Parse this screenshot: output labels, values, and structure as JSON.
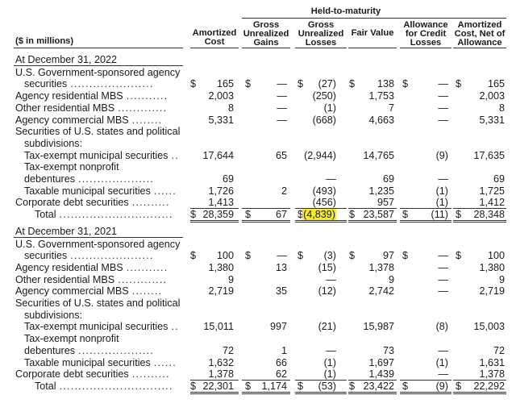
{
  "header": {
    "group_label": "Held-to-maturity",
    "units_label": "($ in millions)",
    "columns": [
      {
        "key": "amortized_cost",
        "label": "Amortized Cost"
      },
      {
        "key": "gross_unrealized_gains",
        "label": "Gross Unrealized Gains"
      },
      {
        "key": "gross_unrealized_losses",
        "label": "Gross Unrealized Losses"
      },
      {
        "key": "fair_value",
        "label": "Fair Value"
      },
      {
        "key": "allowance_for_credit_losses",
        "label": "Allowance for Credit Losses"
      },
      {
        "key": "amortized_cost_net",
        "label": "Amortized Cost, Net of Allowance"
      }
    ]
  },
  "highlight_color": "#f5e931",
  "sections": [
    {
      "title": "At December 31, 2022",
      "rows": [
        {
          "type": "label",
          "text": "U.S. Government-sponsored agency"
        },
        {
          "type": "data",
          "text": "securities",
          "indent": true,
          "dots": "......................",
          "currency": true,
          "values": [
            "165",
            "—",
            "(27)",
            "138",
            "—",
            "165"
          ]
        },
        {
          "type": "data",
          "text": "Agency residential MBS",
          "dots": "...........",
          "values": [
            "2,003",
            "—",
            "(250)",
            "1,753",
            "—",
            "2,003"
          ]
        },
        {
          "type": "data",
          "text": "Other residential MBS",
          "dots": ".............",
          "values": [
            "8",
            "—",
            "(1)",
            "7",
            "—",
            "8"
          ]
        },
        {
          "type": "data",
          "text": "Agency commercial MBS",
          "dots": "........",
          "values": [
            "5,331",
            "—",
            "(668)",
            "4,663",
            "—",
            "5,331"
          ]
        },
        {
          "type": "label",
          "text": "Securities of U.S. states and political"
        },
        {
          "type": "label",
          "text": "subdivisions:",
          "indent": true
        },
        {
          "type": "data",
          "text": "Tax-exempt municipal securities",
          "dots": "..",
          "indent": true,
          "values": [
            "17,644",
            "65",
            "(2,944)",
            "14,765",
            "(9)",
            "17,635"
          ]
        },
        {
          "type": "label",
          "text": "Tax-exempt nonprofit",
          "indent": true
        },
        {
          "type": "data",
          "text": "debentures",
          "dots": "....................",
          "indent2": true,
          "values": [
            "69",
            "",
            "—",
            "69",
            "—",
            "69"
          ]
        },
        {
          "type": "data",
          "text": "Taxable municipal securities",
          "dots": "......",
          "indent": true,
          "values": [
            "1,726",
            "2",
            "(493)",
            "1,235",
            "(1)",
            "1,725"
          ]
        },
        {
          "type": "data",
          "text": "Corporate debt securities",
          "dots": "..........",
          "values": [
            "1,413",
            "",
            "(456)",
            "957",
            "(1)",
            "1,412"
          ]
        },
        {
          "type": "total",
          "text": "Total",
          "dots": "..............................",
          "values": [
            "28,359",
            "67",
            "(4,839)",
            "23,587",
            "(11)",
            "28,348"
          ]
        }
      ]
    },
    {
      "title": "At December 31, 2021",
      "rows": [
        {
          "type": "label",
          "text": "U.S. Government-sponsored agency"
        },
        {
          "type": "data",
          "text": "securities",
          "indent": true,
          "dots": "......................",
          "currency": true,
          "values": [
            "100",
            "—",
            "(3)",
            "97",
            "—",
            "100"
          ]
        },
        {
          "type": "data",
          "text": "Agency residential MBS",
          "dots": "...........",
          "values": [
            "1,380",
            "13",
            "(15)",
            "1,378",
            "—",
            "1,380"
          ]
        },
        {
          "type": "data",
          "text": "Other residential MBS",
          "dots": ".............",
          "values": [
            "9",
            "",
            "—",
            "9",
            "—",
            "9"
          ]
        },
        {
          "type": "data",
          "text": "Agency commercial MBS",
          "dots": "........",
          "values": [
            "2,719",
            "35",
            "(12)",
            "2,742",
            "—",
            "2,719"
          ]
        },
        {
          "type": "label",
          "text": "Securities of U.S. states and political"
        },
        {
          "type": "label",
          "text": "subdivisions:",
          "indent": true
        },
        {
          "type": "data",
          "text": "Tax-exempt municipal securities",
          "dots": "..",
          "indent": true,
          "values": [
            "15,011",
            "997",
            "(21)",
            "15,987",
            "(8)",
            "15,003"
          ]
        },
        {
          "type": "label",
          "text": "Tax-exempt nonprofit",
          "indent": true
        },
        {
          "type": "data",
          "text": "debentures",
          "dots": "....................",
          "indent2": true,
          "values": [
            "72",
            "1",
            "—",
            "73",
            "—",
            "72"
          ]
        },
        {
          "type": "data",
          "text": "Taxable municipal securities",
          "dots": "......",
          "indent": true,
          "values": [
            "1,632",
            "66",
            "(1)",
            "1,697",
            "(1)",
            "1,631"
          ]
        },
        {
          "type": "data",
          "text": "Corporate debt securities",
          "dots": "..........",
          "values": [
            "1,378",
            "62",
            "(1)",
            "1,439",
            "—",
            "1,378"
          ]
        },
        {
          "type": "total",
          "text": "Total",
          "dots": "..............................",
          "values": [
            "22,301",
            "1,174",
            "(53)",
            "23,422",
            "(9)",
            "22,292"
          ]
        }
      ]
    }
  ]
}
